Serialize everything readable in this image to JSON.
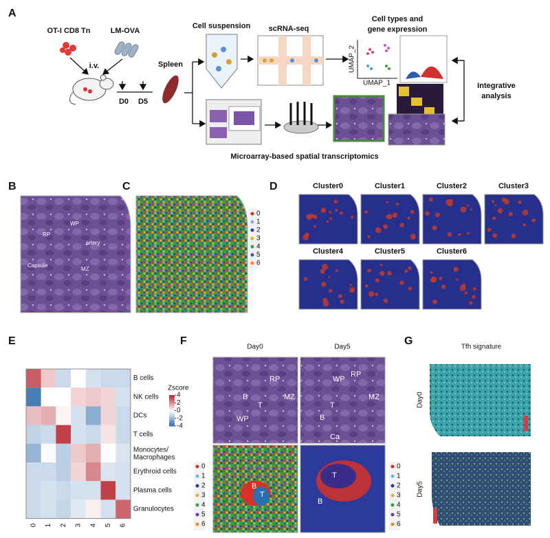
{
  "panel_labels": [
    "A",
    "B",
    "C",
    "D",
    "E",
    "F",
    "G"
  ],
  "panel_a": {
    "cells_label": "OT-I CD8 Tn",
    "pathogen_label": "LM-OVA",
    "route": "i.v.",
    "timepoints": [
      "D0",
      "D5"
    ],
    "organ": "Spleen",
    "cell_suspension": "Cell suspension",
    "scrna_seq": "scRNA-seq",
    "cell_types_title": [
      "Cell types and",
      "gene expression"
    ],
    "umap_y": "UMAP_2",
    "umap_x": "UMAP_1",
    "integrative": [
      "Integrative",
      "analysis"
    ],
    "spatial": "Microarray-based spatial transcriptomics"
  },
  "panel_b": {
    "annotations": [
      "WP",
      "RP",
      "artery",
      "Capsule",
      "MZ"
    ]
  },
  "cluster_legend": {
    "labels": [
      "0",
      "1",
      "2",
      "3",
      "4",
      "5",
      "6"
    ],
    "colors": [
      "#d73027",
      "#7fb2d9",
      "#2b3a9b",
      "#e6b422",
      "#3f9b46",
      "#6a3d9a",
      "#f08a24"
    ]
  },
  "panel_d": {
    "titles": [
      "Cluster0",
      "Cluster1",
      "Cluster2",
      "Cluster3",
      "Cluster4",
      "Cluster5",
      "Cluster6"
    ]
  },
  "panel_e": {
    "type": "heatmap",
    "rows": [
      "B cells",
      "NK cells",
      "DCs",
      "T cells",
      "Monocytes/ Macrophages",
      "Erythroid cells",
      "Plasma cells",
      "Granulocytes"
    ],
    "columns": [
      "0",
      "1",
      "2",
      "3",
      "4",
      "5",
      "6"
    ],
    "values": [
      [
        3,
        1,
        -1,
        0,
        -0.8,
        -1,
        -1
      ],
      [
        -3.5,
        0,
        0,
        0.8,
        1,
        0.8,
        -0.8
      ],
      [
        1.2,
        1.5,
        0.2,
        -0.8,
        -2.2,
        0.8,
        -1
      ],
      [
        -1.2,
        -1,
        3.5,
        -0.8,
        -1,
        0.5,
        -1
      ],
      [
        -2,
        0.1,
        -1.3,
        1,
        1.5,
        0,
        -0.7
      ],
      [
        -1,
        -1,
        -1.3,
        0.8,
        2.2,
        -0.7,
        -0.8
      ],
      [
        -1,
        -0.8,
        -1,
        -0.8,
        -0.8,
        3.5,
        -0.8
      ],
      [
        -1,
        -0.8,
        -1.1,
        -0.6,
        0.3,
        -0.8,
        2.8
      ]
    ],
    "legend_title": "Zscore",
    "zlim": [
      -4,
      4
    ],
    "zticks": [
      4,
      2,
      0,
      -2,
      -4
    ],
    "colors": [
      "#2c6aa9",
      "#ffffff",
      "#b8262f"
    ]
  },
  "panel_f": {
    "titles": [
      "Day0",
      "Day5"
    ],
    "day0_annotations": [
      "RP",
      "B",
      "T",
      "MZ",
      "WP"
    ],
    "day5_annotations": [
      "WP",
      "RP",
      "T",
      "MZ",
      "B",
      "Ca"
    ],
    "day0_cluster_annotations": [
      "B",
      "T"
    ],
    "day5_cluster_annotations": [
      "T",
      "B"
    ]
  },
  "panel_g": {
    "title": "Tfh signature",
    "rows": [
      "Day0",
      "Day5"
    ]
  }
}
